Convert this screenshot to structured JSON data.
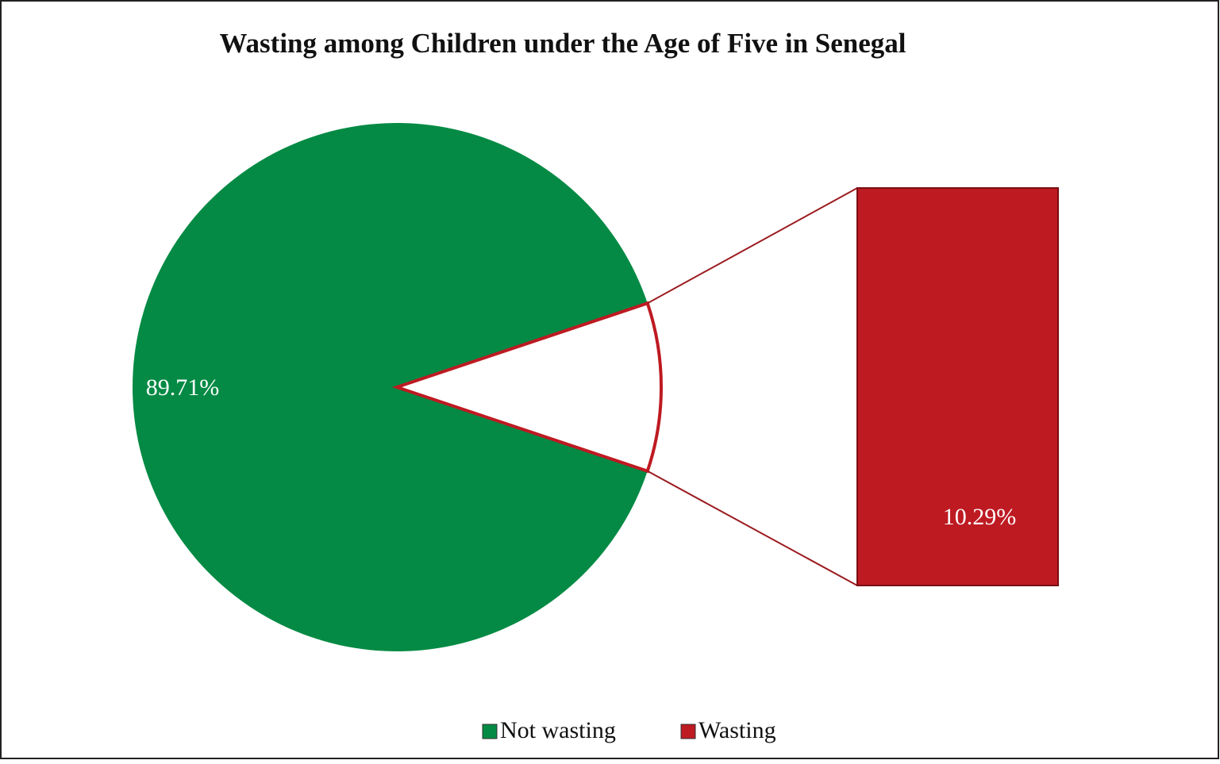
{
  "chart_data": {
    "type": "bar-of-pie",
    "title": "Wasting among Children under the Age of Five in Senegal",
    "categories": [
      "Not wasting",
      "Wasting"
    ],
    "values": [
      89.71,
      10.29
    ],
    "value_labels": [
      "89.71%",
      "10.29%"
    ],
    "colors": [
      "#048a44",
      "#be1a22"
    ],
    "legend": "bottom"
  }
}
